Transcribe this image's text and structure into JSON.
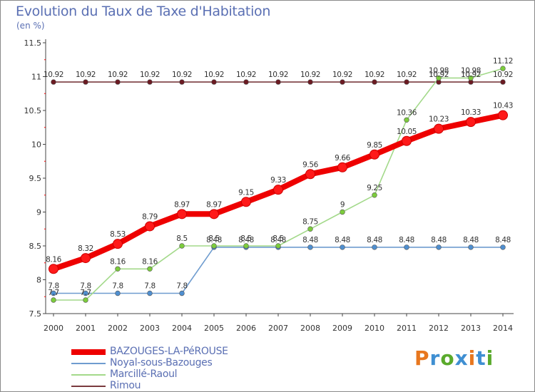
{
  "header": {
    "title": "Evolution du Taux de Taxe d'Habitation",
    "subtitle": "(en %)"
  },
  "brand": {
    "text": "Proxiti",
    "colors": [
      "#e8771e",
      "#3f8fd2",
      "#5aaa2c",
      "#3f8fd2",
      "#e8771e",
      "#3f8fd2",
      "#5aaa2c"
    ]
  },
  "chart_data": {
    "type": "line",
    "x": [
      "2000",
      "2001",
      "2002",
      "2003",
      "2004",
      "2005",
      "2006",
      "2007",
      "2008",
      "2009",
      "2010",
      "2011",
      "2012",
      "2013",
      "2014"
    ],
    "ylim": [
      7.5,
      11.5
    ],
    "yticks": [
      "7.5",
      "8",
      "8.5",
      "9",
      "9.5",
      "10",
      "10.5",
      "11",
      "11.5"
    ],
    "grid": false,
    "legend_position": "bottom-left",
    "series": [
      {
        "name": "BAZOUGES-LA-PéROUSE",
        "color": "#ee0000",
        "values": [
          8.16,
          8.32,
          8.53,
          8.79,
          8.97,
          8.97,
          9.15,
          9.33,
          9.56,
          9.66,
          9.85,
          10.05,
          10.23,
          10.33,
          10.43
        ],
        "labels": [
          "8.16",
          "8.32",
          "8.53",
          "8.79",
          "8.97",
          "8.97",
          "9.15",
          "9.33",
          "9.56",
          "9.66",
          "9.85",
          "10.05",
          "10.23",
          "10.33",
          "10.43"
        ]
      },
      {
        "name": "Noyal-sous-Bazouges",
        "color": "#6f9ccf",
        "values": [
          7.8,
          7.8,
          7.8,
          7.8,
          7.8,
          8.48,
          8.48,
          8.48,
          8.48,
          8.48,
          8.48,
          8.48,
          8.48,
          8.48,
          8.48
        ],
        "labels": [
          "7.8",
          "7.8",
          "7.8",
          "7.8",
          "7.8",
          "8.48",
          "8.48",
          "8.48",
          "8.48",
          "8.48",
          "8.48",
          "8.48",
          "8.48",
          "8.48",
          "8.48"
        ]
      },
      {
        "name": "Marcillé-Raoul",
        "color": "#a3d98a",
        "values": [
          7.7,
          7.7,
          8.16,
          8.16,
          8.5,
          8.5,
          8.5,
          8.5,
          8.75,
          9,
          9.25,
          10.36,
          10.98,
          10.98,
          11.12
        ],
        "labels": [
          "7.7",
          "7.7",
          "8.16",
          "8.16",
          "8.5",
          "8.5",
          "8.5",
          "8.5",
          "8.75",
          "9",
          "9.25",
          "10.36",
          "10.98",
          "10.98",
          "11.12"
        ]
      },
      {
        "name": "Rimou",
        "color": "#7a3a3e",
        "values": [
          10.92,
          10.92,
          10.92,
          10.92,
          10.92,
          10.92,
          10.92,
          10.92,
          10.92,
          10.92,
          10.92,
          10.92,
          10.92,
          10.92,
          10.92
        ],
        "labels": [
          "10.92",
          "10.92",
          "10.92",
          "10.92",
          "10.92",
          "10.92",
          "10.92",
          "10.92",
          "10.92",
          "10.92",
          "10.92",
          "10.92",
          "10.92",
          "10.92",
          "10.92"
        ]
      }
    ]
  }
}
